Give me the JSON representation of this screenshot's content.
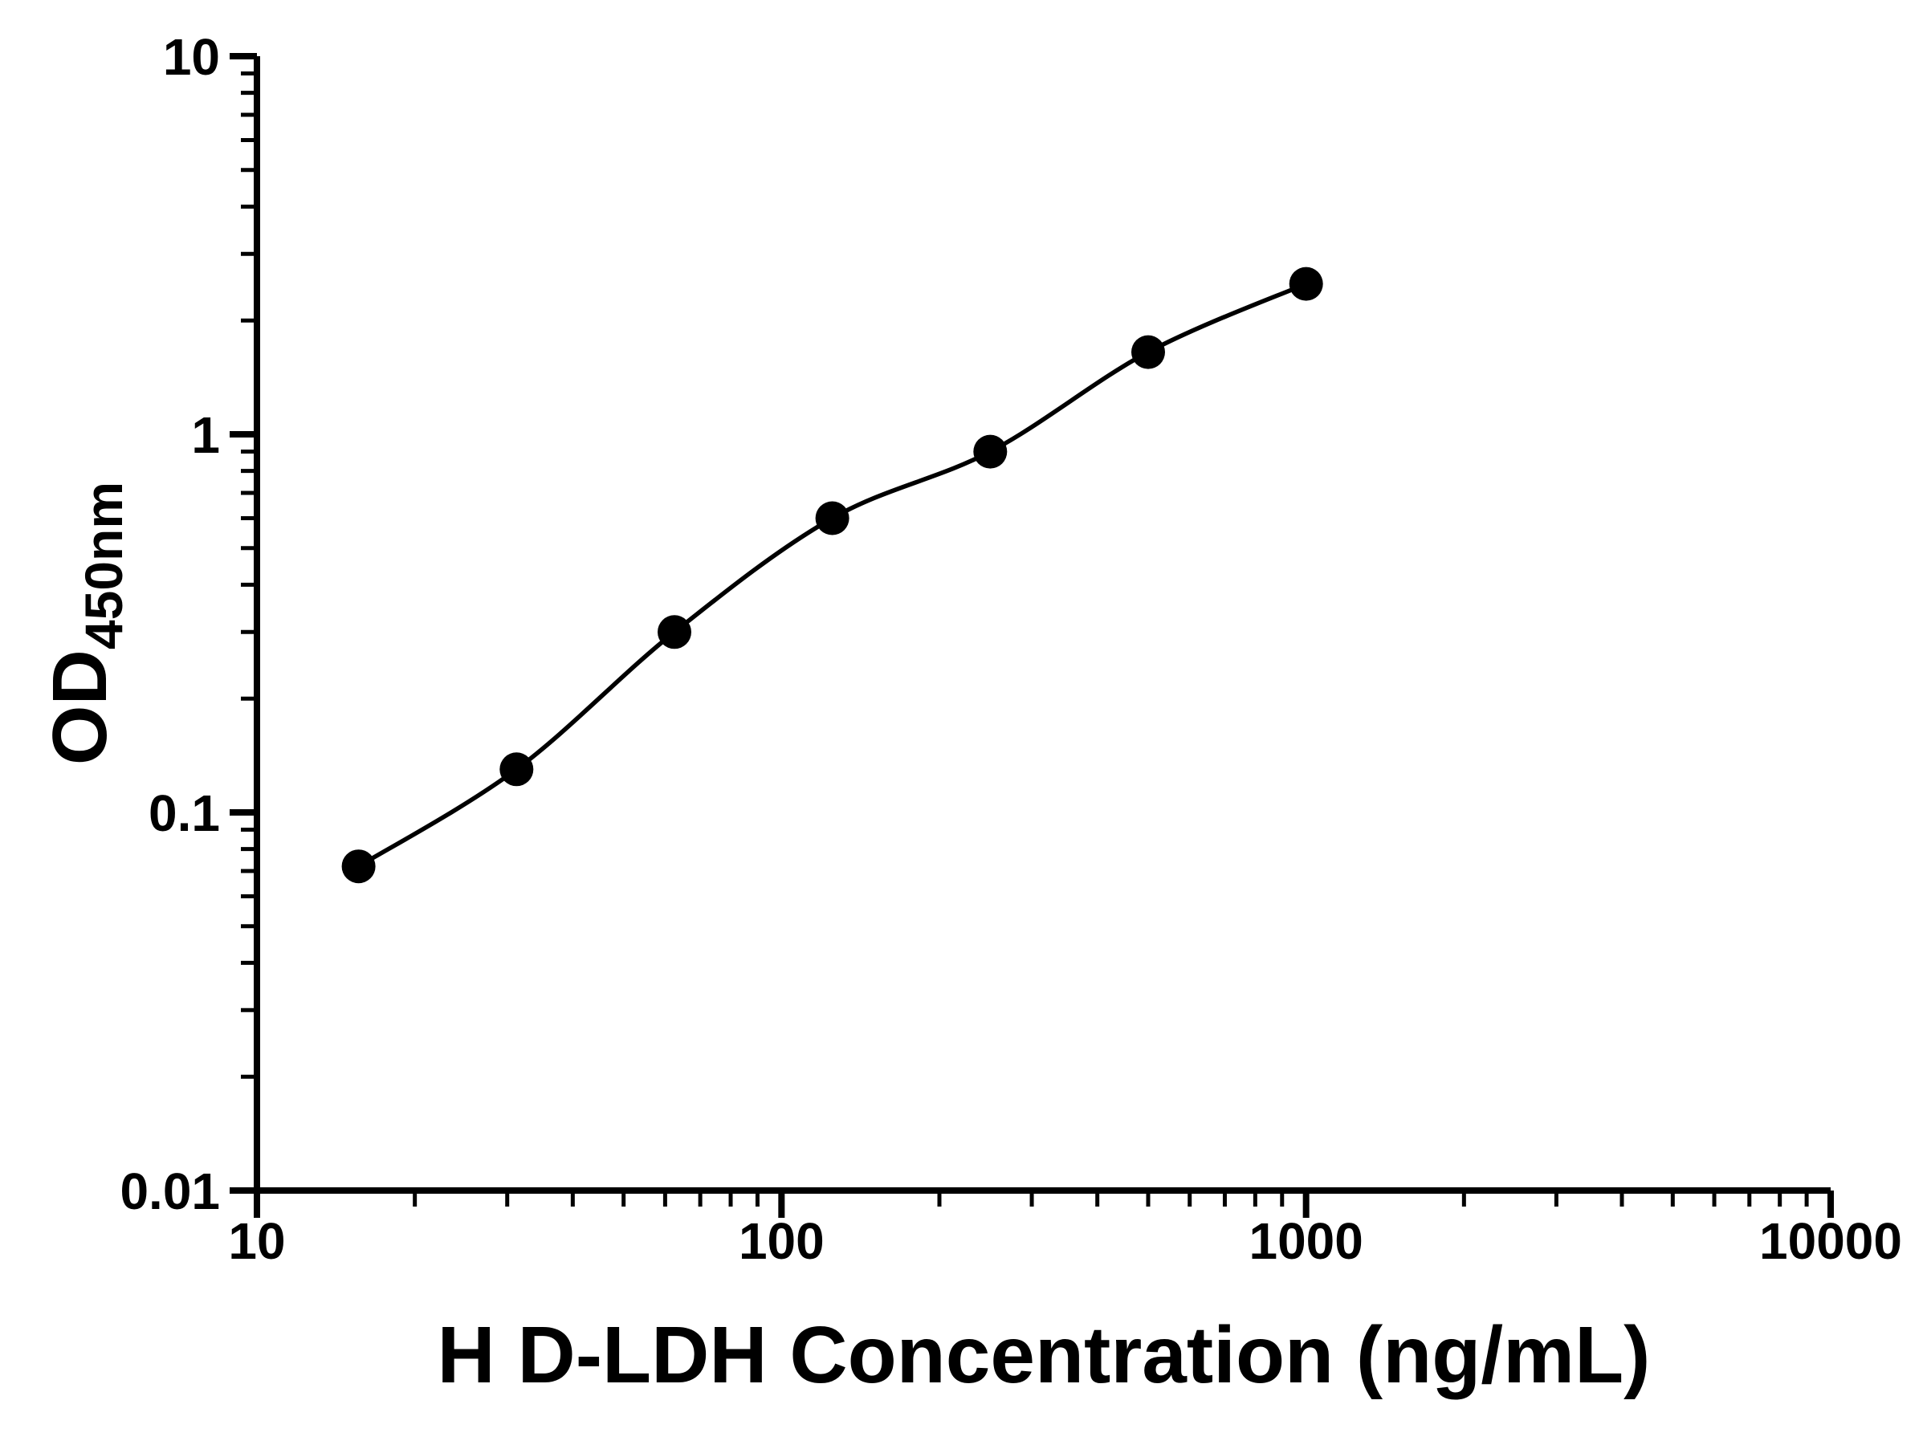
{
  "figure": {
    "background": "#ffffff"
  },
  "chart_data": {
    "type": "scatter",
    "title": "",
    "xlabel": "H D-LDH Concentration (ng/mL)",
    "ylabel": "OD450nm",
    "ylabel_main": "OD",
    "ylabel_sub": "450nm",
    "x_scale": "log",
    "y_scale": "log",
    "xlim": [
      10,
      10000
    ],
    "ylim": [
      0.01,
      10
    ],
    "x_tick_values": [
      10,
      100,
      1000,
      10000
    ],
    "x_tick_labels": [
      "10",
      "100",
      "1000",
      "10000"
    ],
    "y_tick_values": [
      0.01,
      0.1,
      1,
      10
    ],
    "y_tick_labels": [
      "0.01",
      "0.1",
      "1",
      "10"
    ],
    "grid": false,
    "legend": "none",
    "x": [
      15.625,
      31.25,
      62.5,
      125,
      250,
      500,
      1000
    ],
    "y": [
      0.072,
      0.13,
      0.3,
      0.6,
      0.9,
      1.65,
      2.5
    ],
    "marker": "filled-circle",
    "marker_color": "#000000",
    "line_color": "#000000",
    "axis_color": "#000000"
  }
}
